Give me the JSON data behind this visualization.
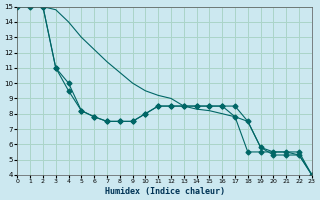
{
  "xlabel": "Humidex (Indice chaleur)",
  "bg_color": "#cce8f0",
  "grid_color": "#aad4c8",
  "line_color": "#006666",
  "xlim": [
    0,
    23
  ],
  "ylim": [
    4,
    15
  ],
  "yticks": [
    4,
    5,
    6,
    7,
    8,
    9,
    10,
    11,
    12,
    13,
    14,
    15
  ],
  "xticks": [
    0,
    1,
    2,
    3,
    4,
    5,
    6,
    7,
    8,
    9,
    10,
    11,
    12,
    13,
    14,
    15,
    16,
    17,
    18,
    19,
    20,
    21,
    22,
    23
  ],
  "line1_x": [
    0,
    1,
    2,
    3,
    4,
    5,
    6,
    7,
    8,
    9,
    10,
    11,
    12,
    13,
    14,
    15,
    16,
    17,
    18,
    19,
    20,
    21,
    22,
    23
  ],
  "line1_y": [
    15,
    15,
    15,
    14.8,
    14.0,
    13.0,
    12.2,
    11.4,
    10.7,
    10.0,
    9.5,
    9.2,
    9.0,
    8.5,
    8.3,
    8.2,
    8.0,
    7.8,
    7.5,
    5.8,
    5.5,
    5.5,
    5.3,
    4.0
  ],
  "line2_x": [
    0,
    1,
    2,
    3,
    4,
    5,
    6,
    7,
    8,
    9,
    10,
    11,
    12,
    13,
    14,
    15,
    16,
    17,
    18,
    19,
    20,
    21,
    22,
    23
  ],
  "line2_y": [
    15,
    15,
    15,
    11.0,
    9.5,
    8.2,
    7.8,
    7.5,
    7.5,
    7.5,
    8.0,
    8.5,
    8.5,
    8.5,
    8.5,
    8.5,
    8.5,
    7.8,
    5.5,
    5.5,
    5.5,
    5.5,
    5.5,
    4.0
  ],
  "line3_x": [
    2,
    3,
    4,
    5,
    6,
    7,
    8,
    9,
    10,
    11,
    12,
    13,
    14,
    15,
    16,
    17,
    18,
    19,
    20,
    21,
    22,
    23
  ],
  "line3_y": [
    15,
    11.0,
    10.0,
    8.2,
    7.8,
    7.5,
    7.5,
    7.5,
    8.0,
    8.5,
    8.5,
    8.5,
    8.5,
    8.5,
    8.5,
    8.5,
    7.5,
    5.8,
    5.3,
    5.3,
    5.3,
    4.0
  ]
}
